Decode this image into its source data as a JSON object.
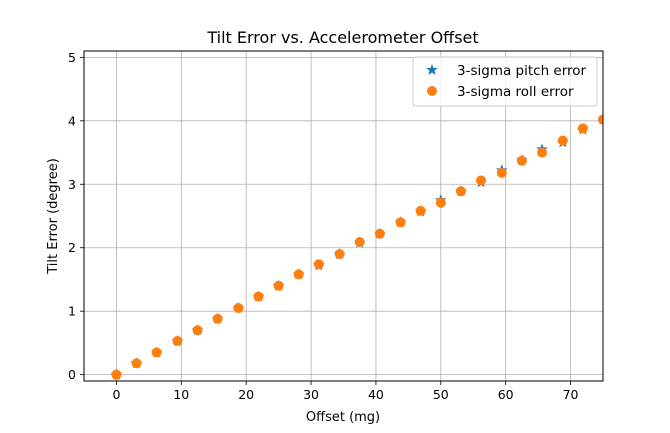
{
  "chart_data": {
    "type": "scatter",
    "title": "Tilt Error vs. Accelerometer Offset",
    "xlabel": "Offset (mg)",
    "ylabel": "Tilt Error (degree)",
    "xlim": [
      -5,
      75
    ],
    "ylim": [
      -0.1,
      5.1
    ],
    "xticks": [
      0,
      10,
      20,
      30,
      40,
      50,
      60,
      70
    ],
    "yticks": [
      0,
      1,
      2,
      3,
      4,
      5
    ],
    "grid": true,
    "legend_position": "top-right",
    "series": [
      {
        "name": "3-sigma pitch error",
        "marker": "star",
        "color": "#1f77b4",
        "points": [
          [
            0,
            0.0
          ],
          [
            3.1,
            0.18
          ],
          [
            6.2,
            0.35
          ],
          [
            9.4,
            0.53
          ],
          [
            12.5,
            0.7
          ],
          [
            15.6,
            0.88
          ],
          [
            18.8,
            1.05
          ],
          [
            21.9,
            1.23
          ],
          [
            25.0,
            1.4
          ],
          [
            28.1,
            1.58
          ],
          [
            31.2,
            1.72
          ],
          [
            34.4,
            1.9
          ],
          [
            37.5,
            2.08
          ],
          [
            40.6,
            2.22
          ],
          [
            43.8,
            2.4
          ],
          [
            46.9,
            2.57
          ],
          [
            50.0,
            2.75
          ],
          [
            53.1,
            2.89
          ],
          [
            56.2,
            3.03
          ],
          [
            59.4,
            3.22
          ],
          [
            62.5,
            3.38
          ],
          [
            65.6,
            3.55
          ],
          [
            68.8,
            3.66
          ],
          [
            71.9,
            3.86
          ],
          [
            75.0,
            4.02
          ]
        ]
      },
      {
        "name": "3-sigma roll error",
        "marker": "circle",
        "color": "#ff7f0e",
        "points": [
          [
            0,
            0.0
          ],
          [
            3.1,
            0.18
          ],
          [
            6.2,
            0.35
          ],
          [
            9.4,
            0.53
          ],
          [
            12.5,
            0.7
          ],
          [
            15.6,
            0.88
          ],
          [
            18.8,
            1.05
          ],
          [
            21.9,
            1.23
          ],
          [
            25.0,
            1.4
          ],
          [
            28.1,
            1.58
          ],
          [
            31.2,
            1.74
          ],
          [
            34.4,
            1.9
          ],
          [
            37.5,
            2.09
          ],
          [
            40.6,
            2.22
          ],
          [
            43.8,
            2.4
          ],
          [
            46.9,
            2.58
          ],
          [
            50.0,
            2.71
          ],
          [
            53.1,
            2.89
          ],
          [
            56.2,
            3.06
          ],
          [
            59.4,
            3.18
          ],
          [
            62.5,
            3.37
          ],
          [
            65.6,
            3.5
          ],
          [
            68.8,
            3.69
          ],
          [
            71.9,
            3.88
          ],
          [
            75.0,
            4.02
          ]
        ]
      }
    ]
  }
}
